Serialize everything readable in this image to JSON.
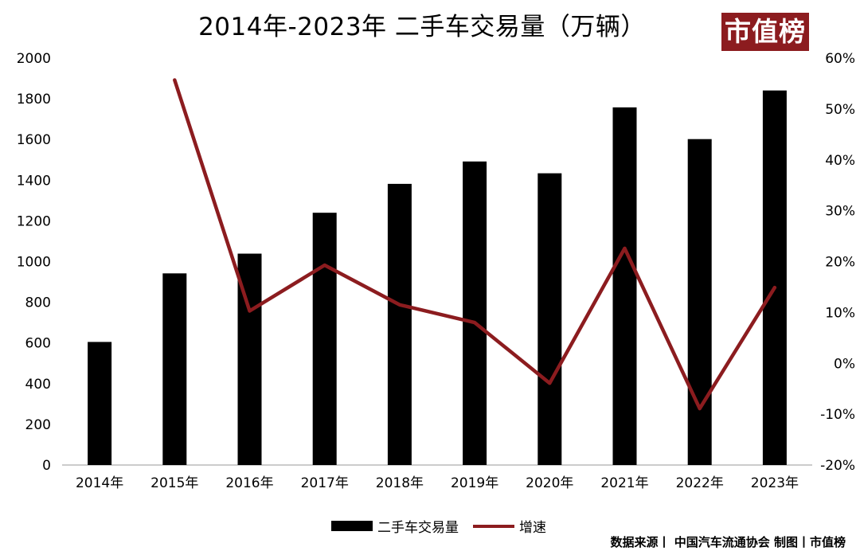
{
  "title": "2014年-2023年 二手车交易量（万辆）",
  "logo_text": "市值榜",
  "source_text": "数据来源丨 中国汽车流通协会   制图丨市值榜",
  "colors": {
    "bar": "#000000",
    "line": "#8c1c1f",
    "logo_bg": "#8c1c1f"
  },
  "chart_data": {
    "type": "bar",
    "title": "2014年-2023年 二手车交易量（万辆）",
    "categories": [
      "2014年",
      "2015年",
      "2016年",
      "2017年",
      "2018年",
      "2019年",
      "2020年",
      "2021年",
      "2022年",
      "2023年"
    ],
    "series": [
      {
        "name": "二手车交易量",
        "type": "bar",
        "axis": "left",
        "values": [
          605,
          942,
          1039,
          1240,
          1382,
          1492,
          1434,
          1758,
          1602,
          1841
        ]
      },
      {
        "name": "增速",
        "type": "line",
        "axis": "right",
        "values": [
          null,
          55.7,
          10.3,
          19.3,
          11.5,
          8.0,
          -3.9,
          22.6,
          -8.9,
          14.9
        ]
      }
    ],
    "y_left": {
      "min": 0,
      "max": 2000,
      "step": 200,
      "ticks": [
        "0",
        "200",
        "400",
        "600",
        "800",
        "1000",
        "1200",
        "1400",
        "1600",
        "1800",
        "2000"
      ]
    },
    "y_right": {
      "min": -20,
      "max": 60,
      "step": 10,
      "ticks": [
        "-20%",
        "-10%",
        "0%",
        "10%",
        "20%",
        "30%",
        "40%",
        "50%",
        "60%"
      ]
    },
    "grid": false,
    "legend_position": "bottom-center"
  }
}
